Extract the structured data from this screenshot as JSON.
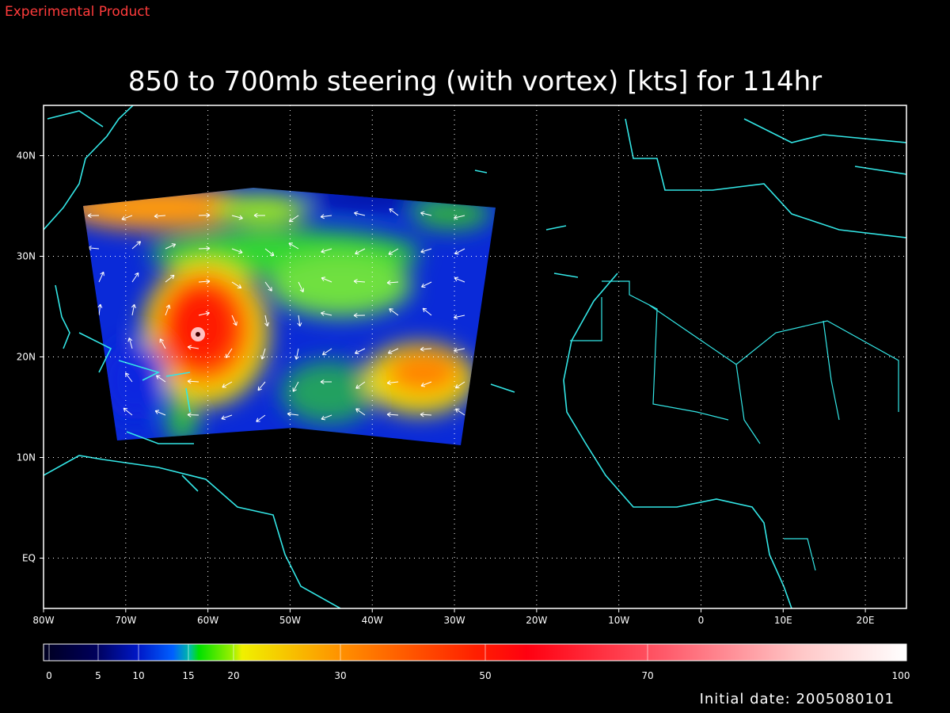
{
  "header": {
    "note": "Experimental Product"
  },
  "title": "850 to 700mb steering (with vortex) [kts] for 114hr",
  "map": {
    "xlim": [
      -80,
      25
    ],
    "ylim": [
      -5,
      45
    ],
    "xticks": [
      {
        "value": -80,
        "label": "80W"
      },
      {
        "value": -70,
        "label": "70W"
      },
      {
        "value": -60,
        "label": "60W"
      },
      {
        "value": -50,
        "label": "50W"
      },
      {
        "value": -40,
        "label": "40W"
      },
      {
        "value": -30,
        "label": "30W"
      },
      {
        "value": -20,
        "label": "20W"
      },
      {
        "value": -10,
        "label": "10W"
      },
      0,
      {
        "value": 10,
        "label": "10E"
      },
      {
        "value": 20,
        "label": "20E"
      }
    ],
    "yticks": [
      {
        "value": 0,
        "label": "EQ"
      },
      {
        "value": 10,
        "label": "10N"
      },
      {
        "value": 20,
        "label": "20N"
      },
      {
        "value": 30,
        "label": "30N"
      },
      {
        "value": 40,
        "label": "40N"
      }
    ],
    "grid": true
  },
  "colorbar": {
    "ticks": [
      0,
      5,
      10,
      15,
      20,
      30,
      50,
      70,
      100
    ]
  },
  "footer": {
    "initial_date": "Initial date: 2005080101"
  }
}
